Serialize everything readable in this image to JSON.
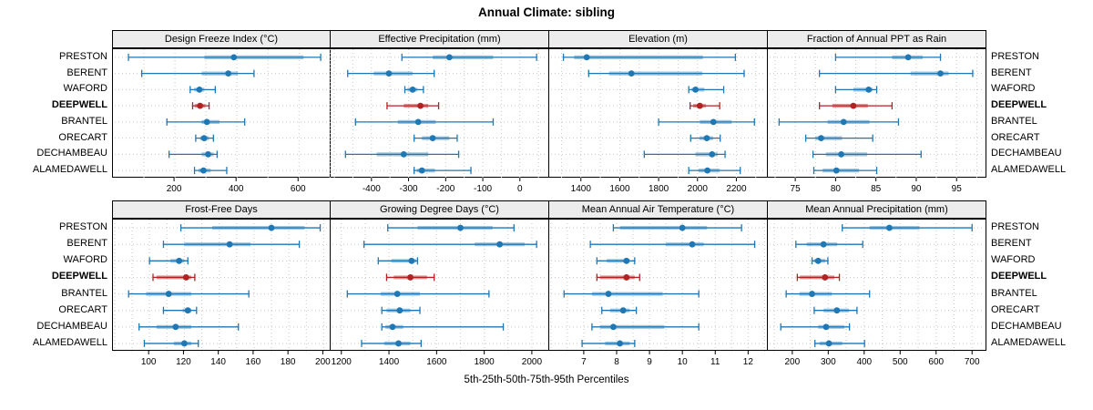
{
  "chart_data": {
    "type": "dotplot-intervals",
    "title": "Annual Climate: sibling",
    "caption": "5th-25th-50th-75th-95th Percentiles",
    "layout": "2 rows x 4 cols trellis",
    "grid": true,
    "percentiles": [
      "5th",
      "25th",
      "50th",
      "75th",
      "95th"
    ],
    "sites": [
      "PRESTON",
      "BERENT",
      "WAFORD",
      "DEEPWELL",
      "BRANTEL",
      "ORECART",
      "DECHAMBEAU",
      "ALAMEDAWELL"
    ],
    "highlight_site": "DEEPWELL",
    "colors": {
      "series_blue": "#1f77b4",
      "series_blue_band": "rgba(31,119,180,0.42)",
      "highlight_red": "#b22222",
      "highlight_red_band": "rgba(178,34,34,0.45)",
      "strip_bg": "#ececec",
      "gridline": "#c9c9c9",
      "border": "#000000"
    },
    "panels": [
      {
        "title": "Design Freeze Index (°C)",
        "row": 0,
        "col": 0,
        "xlim": [
          0,
          705
        ],
        "ticks": [
          200,
          400,
          600
        ],
        "values": [
          [
            50,
            295,
            390,
            615,
            670
          ],
          [
            93,
            286,
            372,
            403,
            455
          ],
          [
            249,
            262,
            279,
            295,
            330
          ],
          [
            257,
            264,
            281,
            298,
            310
          ],
          [
            174,
            286,
            303,
            344,
            425
          ],
          [
            267,
            281,
            294,
            310,
            324
          ],
          [
            181,
            286,
            307,
            325,
            336
          ],
          [
            263,
            276,
            292,
            315,
            367
          ]
        ]
      },
      {
        "title": "Effective Precipitation (mm)",
        "row": 0,
        "col": 1,
        "xlim": [
          -510,
          79
        ],
        "ticks": [
          -400,
          -300,
          -200,
          -100,
          0
        ],
        "values": [
          [
            -318,
            -235,
            -190,
            -72,
            45
          ],
          [
            -464,
            -394,
            -353,
            -289,
            -231
          ],
          [
            -310,
            -303,
            -289,
            -276,
            -260
          ],
          [
            -358,
            -313,
            -268,
            -247,
            -219
          ],
          [
            -443,
            -329,
            -274,
            -227,
            -72
          ],
          [
            -285,
            -264,
            -235,
            -190,
            -169
          ],
          [
            -470,
            -386,
            -313,
            -247,
            -165
          ],
          [
            -285,
            -278,
            -264,
            -229,
            -132
          ]
        ]
      },
      {
        "title": "Elevation (m)",
        "row": 0,
        "col": 2,
        "xlim": [
          1237,
          2362
        ],
        "ticks": [
          1400,
          1600,
          1800,
          2000,
          2200
        ],
        "values": [
          [
            1310,
            1365,
            1430,
            2028,
            2195
          ],
          [
            1440,
            1545,
            1660,
            2025,
            2240
          ],
          [
            1955,
            1970,
            1990,
            2035,
            2135
          ],
          [
            1962,
            1978,
            2012,
            2043,
            2114
          ],
          [
            1800,
            2012,
            2082,
            2176,
            2293
          ],
          [
            1965,
            2010,
            2048,
            2080,
            2117
          ],
          [
            1726,
            1989,
            2075,
            2103,
            2142
          ],
          [
            1955,
            2005,
            2051,
            2114,
            2220
          ]
        ]
      },
      {
        "title": "Fraction of Annual PPT as Rain",
        "row": 0,
        "col": 3,
        "xlim": [
          71.6,
          98.7
        ],
        "ticks": [
          75,
          80,
          85,
          90,
          95
        ],
        "values": [
          [
            80.0,
            87.0,
            89.0,
            90.8,
            93.0
          ],
          [
            78.0,
            89.3,
            93.0,
            94.0,
            97.0
          ],
          [
            80.0,
            82.2,
            84.1,
            84.6,
            85.1
          ],
          [
            78.0,
            79.6,
            82.2,
            84.0,
            87.0
          ],
          [
            73.0,
            79.0,
            81.0,
            84.2,
            87.8
          ],
          [
            76.3,
            77.5,
            78.2,
            80.8,
            84.6
          ],
          [
            77.2,
            78.8,
            80.7,
            83.9,
            90.6
          ],
          [
            77.3,
            78.4,
            80.1,
            82.9,
            85.1
          ]
        ]
      },
      {
        "title": "Frost-Free Days",
        "row": 1,
        "col": 0,
        "xlim": [
          79,
          204.5
        ],
        "ticks": [
          100,
          120,
          140,
          160,
          180,
          200
        ],
        "values": [
          [
            118,
            136,
            170,
            189,
            198
          ],
          [
            108,
            120,
            146,
            158,
            186
          ],
          [
            100,
            112,
            117,
            120,
            122
          ],
          [
            102,
            104,
            121,
            124,
            126
          ],
          [
            88,
            98,
            111,
            124,
            157
          ],
          [
            108,
            119,
            122,
            124,
            127
          ],
          [
            94,
            104,
            115,
            124,
            151
          ],
          [
            97,
            114,
            120,
            124,
            128
          ]
        ]
      },
      {
        "title": "Growing Degree Days (°C)",
        "row": 1,
        "col": 1,
        "xlim": [
          1155,
          2073
        ],
        "ticks": [
          1200,
          1400,
          1600,
          1800,
          2000
        ],
        "values": [
          [
            1395,
            1520,
            1700,
            1835,
            1925
          ],
          [
            1295,
            1760,
            1865,
            1970,
            2020
          ],
          [
            1355,
            1410,
            1495,
            1515,
            1520
          ],
          [
            1390,
            1420,
            1490,
            1560,
            1590
          ],
          [
            1225,
            1365,
            1435,
            1530,
            1820
          ],
          [
            1370,
            1390,
            1445,
            1490,
            1530
          ],
          [
            1370,
            1385,
            1415,
            1460,
            1880
          ],
          [
            1285,
            1380,
            1440,
            1490,
            1535
          ]
        ]
      },
      {
        "title": "Mean Annual Air Temperature (°C)",
        "row": 1,
        "col": 2,
        "xlim": [
          5.95,
          12.6
        ],
        "ticks": [
          7,
          8,
          9,
          10,
          11,
          12
        ],
        "values": [
          [
            7.9,
            8.1,
            10.0,
            10.75,
            11.8
          ],
          [
            7.2,
            9.5,
            10.3,
            10.65,
            12.2
          ],
          [
            7.4,
            7.7,
            8.3,
            8.4,
            8.55
          ],
          [
            7.4,
            7.5,
            8.3,
            8.55,
            8.7
          ],
          [
            6.4,
            7.25,
            7.75,
            9.4,
            10.5
          ],
          [
            7.55,
            7.8,
            8.2,
            8.4,
            8.6
          ],
          [
            7.25,
            7.5,
            7.9,
            9.45,
            10.5
          ],
          [
            6.95,
            7.65,
            8.1,
            8.4,
            8.55
          ]
        ]
      },
      {
        "title": "Mean Annual Precipitation (mm)",
        "row": 1,
        "col": 3,
        "xlim": [
          132,
          740
        ],
        "ticks": [
          200,
          300,
          400,
          500,
          600,
          700
        ],
        "values": [
          [
            339,
            415,
            470,
            554,
            700
          ],
          [
            210,
            240,
            287,
            325,
            396
          ],
          [
            255,
            260,
            272,
            292,
            299
          ],
          [
            214,
            221,
            291,
            317,
            331
          ],
          [
            183,
            220,
            255,
            310,
            415
          ],
          [
            261,
            287,
            324,
            358,
            380
          ],
          [
            168,
            272,
            294,
            345,
            359
          ],
          [
            263,
            276,
            302,
            339,
            401
          ]
        ]
      }
    ]
  }
}
